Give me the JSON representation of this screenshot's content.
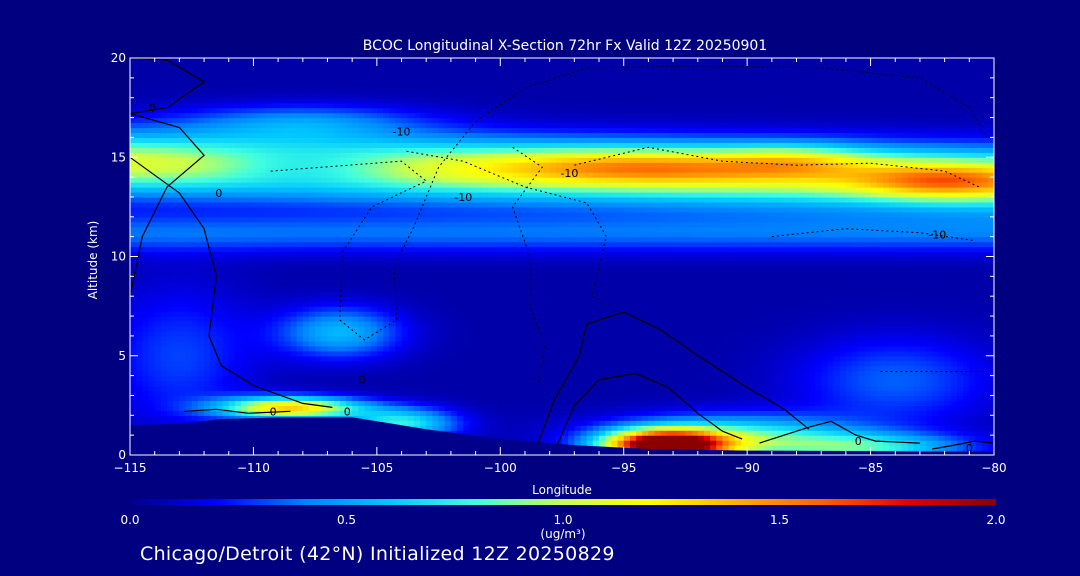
{
  "chart_data": {
    "type": "heatmap",
    "title": "BCOC Longitudinal X-Section 72hr  Fx Valid 12Z 20250901",
    "xlabel": "Longitude",
    "ylabel": "Altitude (km)",
    "xlim": [
      -115,
      -80
    ],
    "ylim": [
      0,
      20
    ],
    "xticks": [
      -115,
      -110,
      -105,
      -100,
      -95,
      -90,
      -85,
      -80
    ],
    "yticks": [
      0,
      5,
      10,
      15,
      20
    ],
    "colorbar": {
      "range": [
        0.0,
        2.0
      ],
      "ticks": [
        "0.0",
        "0.5",
        "1.0",
        "1.5",
        "2.0"
      ],
      "unit": "(ug/m³)",
      "colors": [
        "#00008b",
        "#0000ff",
        "#0080ff",
        "#00c8ff",
        "#40ffe0",
        "#c8ff50",
        "#ffff00",
        "#ffb000",
        "#ff6000",
        "#e00000",
        "#8b0000"
      ]
    },
    "contour_labels": [
      "0",
      "0",
      "0",
      "0",
      "0",
      "0",
      "0",
      "-10",
      "-10",
      "-10",
      "-10"
    ],
    "field_description": "BCOC concentration cross-section; upper layer 0.9-1.6 ug/m3 at 13-17 km; surface maximum ~2.0 ug/m3 near -94 to -91 longitude"
  },
  "footer": {
    "caption": "Chicago/Detroit (42°N) Initialized 12Z 20250829"
  }
}
